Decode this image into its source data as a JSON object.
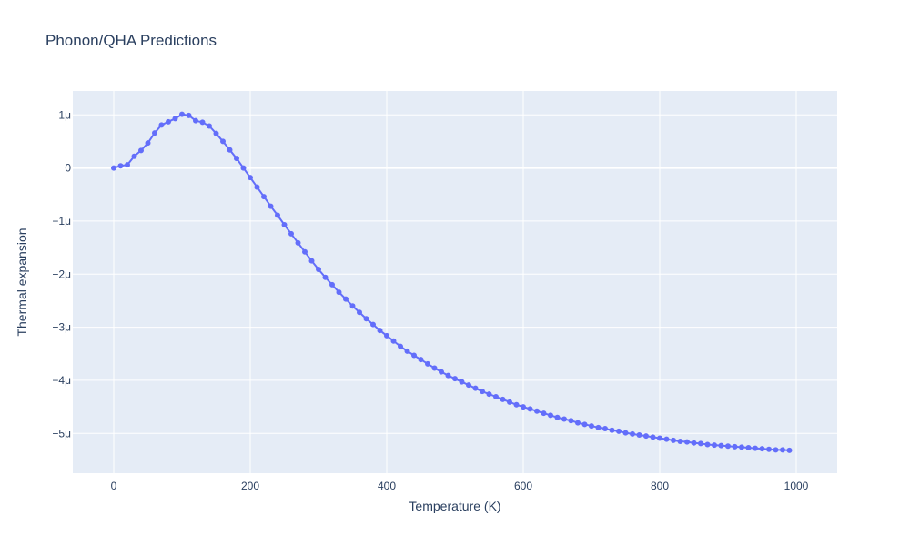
{
  "chart_data": {
    "type": "line",
    "title": "Phonon/QHA Predictions",
    "xlabel": "Temperature (K)",
    "ylabel": "Thermal expansion",
    "xlim": [
      -60,
      1060
    ],
    "ylim": [
      -5.75e-06,
      1.45e-06
    ],
    "x_ticks": [
      {
        "value": 0,
        "label": "0"
      },
      {
        "value": 200,
        "label": "200"
      },
      {
        "value": 400,
        "label": "400"
      },
      {
        "value": 600,
        "label": "600"
      },
      {
        "value": 800,
        "label": "800"
      },
      {
        "value": 1000,
        "label": "1000"
      }
    ],
    "y_ticks": [
      {
        "value": 1e-06,
        "label": "1μ"
      },
      {
        "value": 0,
        "label": "0"
      },
      {
        "value": -1e-06,
        "label": "−1μ"
      },
      {
        "value": -2e-06,
        "label": "−2μ"
      },
      {
        "value": -3e-06,
        "label": "−3μ"
      },
      {
        "value": -4e-06,
        "label": "−4μ"
      },
      {
        "value": -5e-06,
        "label": "−5μ"
      }
    ],
    "grid": true,
    "colors": {
      "series": "#636efa",
      "plot_bg": "#e5ecf6",
      "grid": "#ffffff",
      "text": "#2a3f5f"
    },
    "series": [
      {
        "x": [
          0,
          10,
          20,
          30,
          40,
          50,
          60,
          70,
          80,
          90,
          100,
          110,
          120,
          130,
          140,
          150,
          160,
          170,
          180,
          190,
          200,
          210,
          220,
          230,
          240,
          250,
          260,
          270,
          280,
          290,
          300,
          310,
          320,
          330,
          340,
          350,
          360,
          370,
          380,
          390,
          400,
          410,
          420,
          430,
          440,
          450,
          460,
          470,
          480,
          490,
          500,
          510,
          520,
          530,
          540,
          550,
          560,
          570,
          580,
          590,
          600,
          610,
          620,
          630,
          640,
          650,
          660,
          670,
          680,
          690,
          700,
          710,
          720,
          730,
          740,
          750,
          760,
          770,
          780,
          790,
          800,
          810,
          820,
          830,
          840,
          850,
          860,
          870,
          880,
          890,
          900,
          910,
          920,
          930,
          940,
          950,
          960,
          970,
          980,
          990
        ],
        "y": [
          0,
          4e-08,
          6e-08,
          2.2e-07,
          3.3e-07,
          4.7e-07,
          6.6e-07,
          8.1e-07,
          8.7e-07,
          9.3e-07,
          1.01e-06,
          9.9e-07,
          8.9e-07,
          8.6e-07,
          7.9e-07,
          6.5e-07,
          5e-07,
          3.4e-07,
          1.8e-07,
          0,
          -1.8e-07,
          -3.6e-07,
          -5.4e-07,
          -7.2e-07,
          -8.9e-07,
          -1.07e-06,
          -1.24e-06,
          -1.41e-06,
          -1.58e-06,
          -1.75e-06,
          -1.91e-06,
          -2.06e-06,
          -2.2e-06,
          -2.34e-06,
          -2.47e-06,
          -2.6e-06,
          -2.72e-06,
          -2.84e-06,
          -2.95e-06,
          -3.06e-06,
          -3.16e-06,
          -3.26e-06,
          -3.36e-06,
          -3.45e-06,
          -3.53e-06,
          -3.61e-06,
          -3.69e-06,
          -3.77e-06,
          -3.84e-06,
          -3.91e-06,
          -3.97e-06,
          -4.03e-06,
          -4.09e-06,
          -4.15e-06,
          -4.21e-06,
          -4.26e-06,
          -4.31e-06,
          -4.36e-06,
          -4.41e-06,
          -4.46e-06,
          -4.5e-06,
          -4.54e-06,
          -4.58e-06,
          -4.62e-06,
          -4.66e-06,
          -4.7e-06,
          -4.73e-06,
          -4.76e-06,
          -4.8e-06,
          -4.83e-06,
          -4.86e-06,
          -4.89e-06,
          -4.91e-06,
          -4.94e-06,
          -4.96e-06,
          -4.99e-06,
          -5.01e-06,
          -5.03e-06,
          -5.05e-06,
          -5.07e-06,
          -5.09e-06,
          -5.11e-06,
          -5.13e-06,
          -5.15e-06,
          -5.16e-06,
          -5.18e-06,
          -5.19e-06,
          -5.21e-06,
          -5.22e-06,
          -5.23e-06,
          -5.24e-06,
          -5.25e-06,
          -5.26e-06,
          -5.27e-06,
          -5.28e-06,
          -5.29e-06,
          -5.3e-06,
          -5.31e-06,
          -5.31e-06,
          -5.32e-06
        ]
      }
    ]
  }
}
